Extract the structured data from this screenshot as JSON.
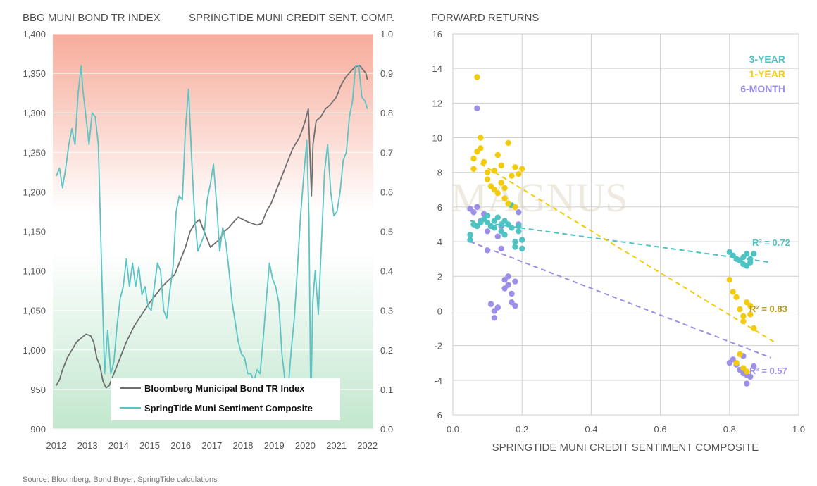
{
  "left": {
    "left_axis_title": "BBG MUNI BOND TR INDEX",
    "right_axis_title": "SPRINGTIDE MUNI CREDIT SENT. COMP.",
    "legend": [
      "Bloomberg Municipal Bond TR Index",
      "SpringTide Muni Sentiment Composite"
    ],
    "source": "Source: Bloomberg, Bond Buyer, SpringTide calculations"
  },
  "right": {
    "title": "FORWARD RETURNS",
    "xlabel": "SPRINGTIDE MUNI CREDIT SENTIMENT COMPOSITE",
    "series_labels": [
      "3-YEAR",
      "1-YEAR",
      "6-MONTH"
    ],
    "r2_labels": [
      "R² = 0.72",
      "R² = 0.83",
      "R² = 0.57"
    ],
    "watermark": "MAGNUS"
  },
  "colors": {
    "bond": "#6e6e6e",
    "sentiment": "#5cc4c4",
    "three_year": "#4ec3c3",
    "one_year": "#f2cc0c",
    "six_month": "#9b8fe8",
    "r2_one_year": "#b8971c",
    "top_band": "#f6a896",
    "bottom_band": "#bfe6cc"
  },
  "chart_data": [
    {
      "type": "line",
      "title": "",
      "xlabel": "",
      "ylabel": "BBG MUNI BOND TR INDEX",
      "y2label": "SPRINGTIDE MUNI CREDIT SENT. COMP.",
      "xlim": [
        2012,
        2022.3
      ],
      "ylim": [
        900,
        1400
      ],
      "y2lim": [
        0,
        1
      ],
      "x_ticks": [
        "2012",
        "2013",
        "2014",
        "2015",
        "2016",
        "2017",
        "2018",
        "2019",
        "2020",
        "2021",
        "2022"
      ],
      "y_ticks": [
        "900",
        "950",
        "1,000",
        "1,050",
        "1,100",
        "1,150",
        "1,200",
        "1,250",
        "1,300",
        "1,350",
        "1,400"
      ],
      "y2_ticks": [
        "0.0",
        "0.1",
        "0.2",
        "0.3",
        "0.4",
        "0.5",
        "0.6",
        "0.7",
        "0.8",
        "0.9",
        "1.0"
      ],
      "series": [
        {
          "name": "Bloomberg Municipal Bond TR Index",
          "axis": "left",
          "x": [
            2012.0,
            2012.1,
            2012.2,
            2012.35,
            2012.5,
            2012.65,
            2012.8,
            2012.95,
            2013.1,
            2013.2,
            2013.3,
            2013.4,
            2013.5,
            2013.6,
            2013.7,
            2013.8,
            2013.9,
            2014.0,
            2014.25,
            2014.5,
            2014.75,
            2015.0,
            2015.2,
            2015.4,
            2015.6,
            2015.8,
            2016.0,
            2016.15,
            2016.3,
            2016.45,
            2016.6,
            2016.75,
            2016.85,
            2016.95,
            2017.1,
            2017.25,
            2017.4,
            2017.55,
            2017.7,
            2017.85,
            2018.0,
            2018.15,
            2018.3,
            2018.45,
            2018.6,
            2018.75,
            2018.9,
            2019.0,
            2019.2,
            2019.4,
            2019.6,
            2019.8,
            2019.9,
            2020.0,
            2020.1,
            2020.15,
            2020.2,
            2020.25,
            2020.35,
            2020.5,
            2020.65,
            2020.8,
            2021.0,
            2021.15,
            2021.3,
            2021.45,
            2021.6,
            2021.75,
            2021.85,
            2021.95,
            2022.0
          ],
          "values": [
            955,
            962,
            975,
            990,
            1000,
            1010,
            1015,
            1020,
            1018,
            1010,
            990,
            980,
            960,
            952,
            955,
            965,
            975,
            985,
            1010,
            1030,
            1045,
            1060,
            1070,
            1080,
            1088,
            1095,
            1115,
            1130,
            1150,
            1160,
            1165,
            1150,
            1140,
            1130,
            1135,
            1140,
            1150,
            1155,
            1162,
            1168,
            1165,
            1162,
            1160,
            1158,
            1160,
            1175,
            1185,
            1195,
            1215,
            1235,
            1255,
            1268,
            1278,
            1290,
            1305,
            1250,
            1195,
            1260,
            1290,
            1295,
            1305,
            1310,
            1320,
            1335,
            1345,
            1352,
            1358,
            1360,
            1355,
            1350,
            1342
          ]
        },
        {
          "name": "SpringTide Muni Sentiment Composite",
          "axis": "right",
          "x": [
            2012.0,
            2012.1,
            2012.2,
            2012.3,
            2012.4,
            2012.5,
            2012.6,
            2012.7,
            2012.8,
            2012.85,
            2012.95,
            2013.05,
            2013.15,
            2013.25,
            2013.35,
            2013.45,
            2013.55,
            2013.65,
            2013.75,
            2013.85,
            2013.95,
            2014.05,
            2014.15,
            2014.25,
            2014.35,
            2014.45,
            2014.55,
            2014.65,
            2014.75,
            2014.85,
            2014.95,
            2015.05,
            2015.15,
            2015.25,
            2015.35,
            2015.45,
            2015.55,
            2015.65,
            2015.75,
            2015.85,
            2015.95,
            2016.05,
            2016.15,
            2016.25,
            2016.35,
            2016.45,
            2016.55,
            2016.65,
            2016.75,
            2016.85,
            2016.95,
            2017.05,
            2017.15,
            2017.25,
            2017.35,
            2017.45,
            2017.55,
            2017.65,
            2017.75,
            2017.85,
            2017.95,
            2018.05,
            2018.15,
            2018.25,
            2018.35,
            2018.45,
            2018.55,
            2018.65,
            2018.75,
            2018.85,
            2018.95,
            2019.05,
            2019.15,
            2019.25,
            2019.35,
            2019.45,
            2019.55,
            2019.65,
            2019.75,
            2019.85,
            2019.95,
            2020.05,
            2020.12,
            2020.18,
            2020.24,
            2020.32,
            2020.42,
            2020.52,
            2020.62,
            2020.72,
            2020.82,
            2020.92,
            2021.02,
            2021.12,
            2021.22,
            2021.32,
            2021.42,
            2021.52,
            2021.62,
            2021.72,
            2021.82,
            2021.92,
            2022.0
          ],
          "values": [
            0.64,
            0.66,
            0.61,
            0.66,
            0.72,
            0.76,
            0.72,
            0.85,
            0.92,
            0.86,
            0.79,
            0.72,
            0.8,
            0.79,
            0.72,
            0.42,
            0.14,
            0.25,
            0.14,
            0.17,
            0.26,
            0.33,
            0.36,
            0.43,
            0.36,
            0.42,
            0.36,
            0.41,
            0.34,
            0.36,
            0.31,
            0.3,
            0.36,
            0.42,
            0.4,
            0.3,
            0.28,
            0.35,
            0.41,
            0.55,
            0.59,
            0.58,
            0.76,
            0.86,
            0.68,
            0.53,
            0.45,
            0.47,
            0.49,
            0.58,
            0.62,
            0.67,
            0.57,
            0.45,
            0.51,
            0.47,
            0.4,
            0.32,
            0.27,
            0.22,
            0.19,
            0.18,
            0.14,
            0.14,
            0.12,
            0.15,
            0.14,
            0.23,
            0.33,
            0.42,
            0.38,
            0.36,
            0.32,
            0.19,
            0.12,
            0.1,
            0.2,
            0.28,
            0.41,
            0.54,
            0.64,
            0.73,
            0.53,
            0.05,
            0.32,
            0.4,
            0.29,
            0.47,
            0.65,
            0.72,
            0.6,
            0.54,
            0.55,
            0.6,
            0.68,
            0.7,
            0.79,
            0.83,
            0.92,
            0.92,
            0.84,
            0.83,
            0.81
          ]
        }
      ]
    },
    {
      "type": "scatter",
      "title": "FORWARD RETURNS",
      "xlabel": "SPRINGTIDE MUNI CREDIT SENTIMENT COMPOSITE",
      "ylabel": "",
      "xlim": [
        0,
        1.0
      ],
      "ylim": [
        -6,
        16
      ],
      "x_ticks": [
        "0.0",
        "0.2",
        "0.4",
        "0.6",
        "0.8",
        "1.0"
      ],
      "y_ticks": [
        "-6",
        "-4",
        "-2",
        "0",
        "2",
        "4",
        "6",
        "8",
        "10",
        "12",
        "14",
        "16"
      ],
      "series": [
        {
          "name": "3-YEAR",
          "r2": 0.72,
          "trendline": [
            [
              0.05,
              5.2
            ],
            [
              0.92,
              2.8
            ]
          ],
          "points": [
            [
              0.05,
              4.4
            ],
            [
              0.05,
              4.1
            ],
            [
              0.06,
              5.0
            ],
            [
              0.07,
              4.9
            ],
            [
              0.08,
              5.1
            ],
            [
              0.09,
              5.3
            ],
            [
              0.1,
              5.1
            ],
            [
              0.1,
              5.5
            ],
            [
              0.11,
              4.9
            ],
            [
              0.12,
              5.2
            ],
            [
              0.12,
              4.8
            ],
            [
              0.13,
              5.4
            ],
            [
              0.14,
              5.0
            ],
            [
              0.14,
              4.6
            ],
            [
              0.15,
              5.2
            ],
            [
              0.15,
              4.4
            ],
            [
              0.16,
              5.0
            ],
            [
              0.17,
              4.8
            ],
            [
              0.17,
              6.1
            ],
            [
              0.18,
              4.0
            ],
            [
              0.18,
              3.7
            ],
            [
              0.19,
              4.6
            ],
            [
              0.19,
              4.9
            ],
            [
              0.2,
              4.1
            ],
            [
              0.2,
              3.6
            ],
            [
              0.8,
              3.4
            ],
            [
              0.81,
              3.2
            ],
            [
              0.82,
              3.0
            ],
            [
              0.83,
              2.9
            ],
            [
              0.84,
              3.1
            ],
            [
              0.84,
              2.7
            ],
            [
              0.85,
              3.3
            ],
            [
              0.86,
              3.0
            ],
            [
              0.86,
              2.8
            ],
            [
              0.87,
              3.3
            ],
            [
              0.85,
              2.6
            ]
          ]
        },
        {
          "name": "1-YEAR",
          "r2": 0.83,
          "trendline": [
            [
              0.08,
              8.5
            ],
            [
              0.93,
              -1.8
            ]
          ],
          "points": [
            [
              0.06,
              8.2
            ],
            [
              0.06,
              8.8
            ],
            [
              0.07,
              13.5
            ],
            [
              0.07,
              9.2
            ],
            [
              0.08,
              10.0
            ],
            [
              0.08,
              9.4
            ],
            [
              0.09,
              8.6
            ],
            [
              0.1,
              8.0
            ],
            [
              0.1,
              7.6
            ],
            [
              0.11,
              7.2
            ],
            [
              0.12,
              8.1
            ],
            [
              0.12,
              7.0
            ],
            [
              0.13,
              9.0
            ],
            [
              0.13,
              6.8
            ],
            [
              0.14,
              7.4
            ],
            [
              0.14,
              8.4
            ],
            [
              0.15,
              6.5
            ],
            [
              0.15,
              7.1
            ],
            [
              0.16,
              9.7
            ],
            [
              0.16,
              6.2
            ],
            [
              0.17,
              7.8
            ],
            [
              0.18,
              8.3
            ],
            [
              0.18,
              6.0
            ],
            [
              0.19,
              7.9
            ],
            [
              0.2,
              8.2
            ],
            [
              0.8,
              1.8
            ],
            [
              0.81,
              1.1
            ],
            [
              0.82,
              0.8
            ],
            [
              0.83,
              0.1
            ],
            [
              0.84,
              -0.3
            ],
            [
              0.84,
              -0.6
            ],
            [
              0.85,
              0.5
            ],
            [
              0.86,
              -0.2
            ],
            [
              0.86,
              0.3
            ],
            [
              0.87,
              -1.0
            ],
            [
              0.82,
              -3.0
            ],
            [
              0.84,
              -3.3
            ],
            [
              0.85,
              -3.5
            ],
            [
              0.83,
              -2.5
            ]
          ]
        },
        {
          "name": "6-MONTH",
          "r2": 0.57,
          "trendline": [
            [
              0.05,
              4.0
            ],
            [
              0.92,
              -2.7
            ]
          ],
          "points": [
            [
              0.05,
              5.9
            ],
            [
              0.06,
              5.7
            ],
            [
              0.07,
              6.0
            ],
            [
              0.07,
              11.7
            ],
            [
              0.08,
              5.2
            ],
            [
              0.09,
              5.6
            ],
            [
              0.1,
              4.6
            ],
            [
              0.1,
              3.5
            ],
            [
              0.11,
              0.4
            ],
            [
              0.12,
              0.0
            ],
            [
              0.12,
              -0.4
            ],
            [
              0.13,
              0.2
            ],
            [
              0.13,
              4.3
            ],
            [
              0.14,
              3.6
            ],
            [
              0.14,
              4.9
            ],
            [
              0.15,
              1.3
            ],
            [
              0.15,
              1.8
            ],
            [
              0.16,
              2.0
            ],
            [
              0.16,
              1.5
            ],
            [
              0.17,
              1.0
            ],
            [
              0.17,
              0.5
            ],
            [
              0.18,
              0.3
            ],
            [
              0.18,
              1.7
            ],
            [
              0.19,
              5.7
            ],
            [
              0.19,
              5.0
            ],
            [
              0.8,
              -3.0
            ],
            [
              0.81,
              -2.8
            ],
            [
              0.82,
              -3.1
            ],
            [
              0.83,
              -3.4
            ],
            [
              0.84,
              -2.6
            ],
            [
              0.85,
              -3.7
            ],
            [
              0.85,
              -4.2
            ],
            [
              0.86,
              -3.8
            ],
            [
              0.87,
              -3.2
            ],
            [
              0.84,
              -3.6
            ]
          ]
        }
      ]
    }
  ]
}
